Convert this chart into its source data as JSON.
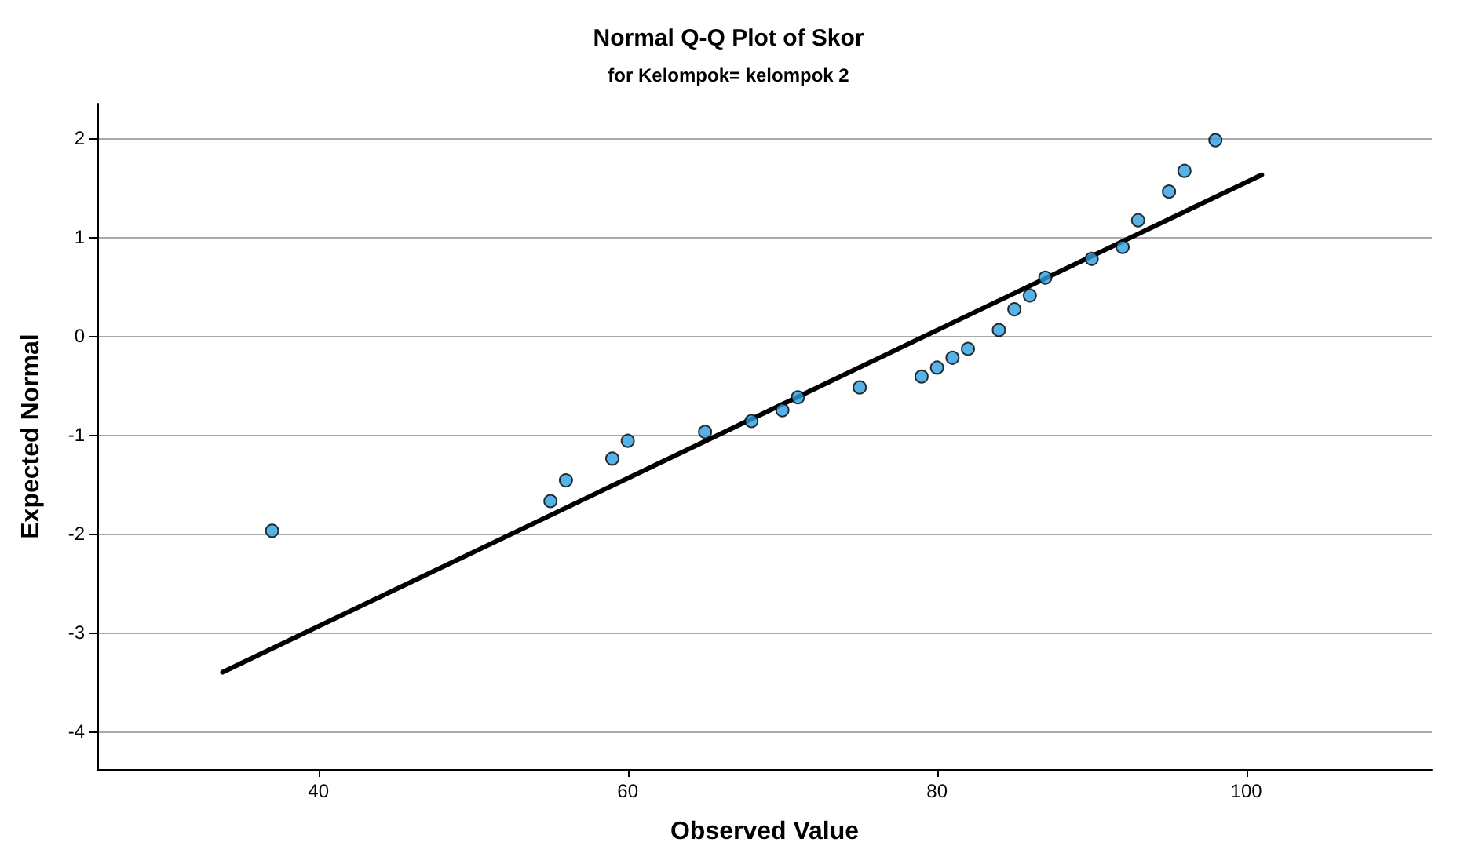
{
  "chart_data": {
    "type": "scatter",
    "title": "Normal Q-Q Plot of Skor",
    "subtitle": "for Kelompok= kelompok 2",
    "xlabel": "Observed Value",
    "ylabel": "Expected Normal",
    "xlim": [
      25.7,
      112
    ],
    "xticks": [
      40,
      60,
      80,
      100
    ],
    "ylim": [
      -4.38,
      2.35
    ],
    "yticks": [
      -4,
      -3,
      -2,
      -1,
      0,
      1,
      2
    ],
    "grid": "y",
    "marker": "circle",
    "series": [
      {
        "color": "#2e9fe0",
        "x": [
          37,
          55,
          56,
          59,
          60,
          65,
          68,
          70,
          71,
          75,
          79,
          80,
          81,
          82,
          84,
          85,
          86,
          87,
          90,
          92,
          93,
          95,
          96,
          98
        ],
        "values": [
          -1.97,
          -1.67,
          -1.46,
          -1.24,
          -1.06,
          -0.97,
          -0.86,
          -0.75,
          -0.62,
          -0.52,
          -0.41,
          -0.32,
          -0.22,
          -0.13,
          0.06,
          0.27,
          0.41,
          0.59,
          0.78,
          0.9,
          1.17,
          1.46,
          1.67,
          1.98
        ]
      },
      {
        "type": "line",
        "color": "#000000",
        "x": [
          33.8,
          101
        ],
        "values": [
          -3.4,
          1.63
        ],
        "marker": "none",
        "line_style": "solid"
      }
    ]
  }
}
